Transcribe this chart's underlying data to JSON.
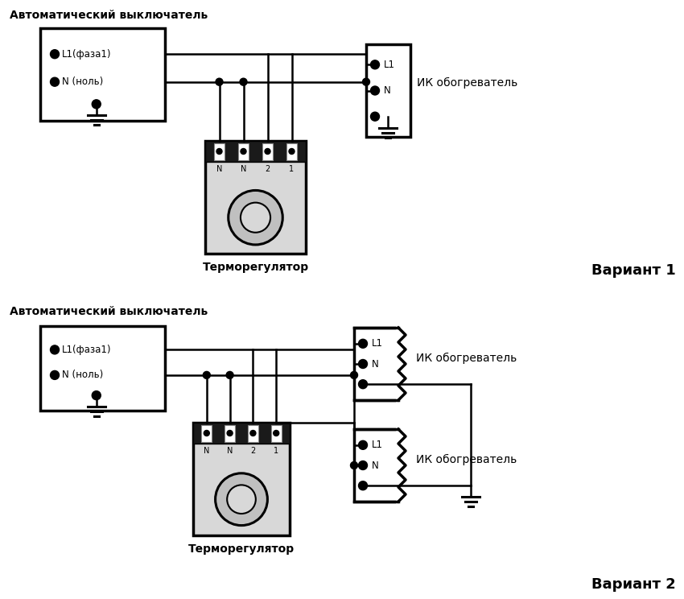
{
  "bg_color": "#ffffff",
  "line_color": "#000000",
  "variant1_label": "Вариант 1",
  "variant2_label": "Вариант 2",
  "auto_label": "Автоматический выключатель",
  "thermo_label": "Терморегулятор",
  "ik_label": "ИК обогреватель",
  "l1_faza": "L1(фаза1)",
  "n_nol": "N (ноль)",
  "l1": "L1",
  "n": "N",
  "term_labels": [
    "N",
    "N",
    "2",
    "1"
  ]
}
